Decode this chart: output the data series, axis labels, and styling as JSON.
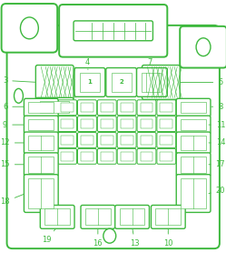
{
  "bg_color": "#ffffff",
  "gc": "#3db83d",
  "lw_outer": 1.4,
  "lw_mid": 1.0,
  "lw_inner": 0.6,
  "lw_tiny": 0.4
}
